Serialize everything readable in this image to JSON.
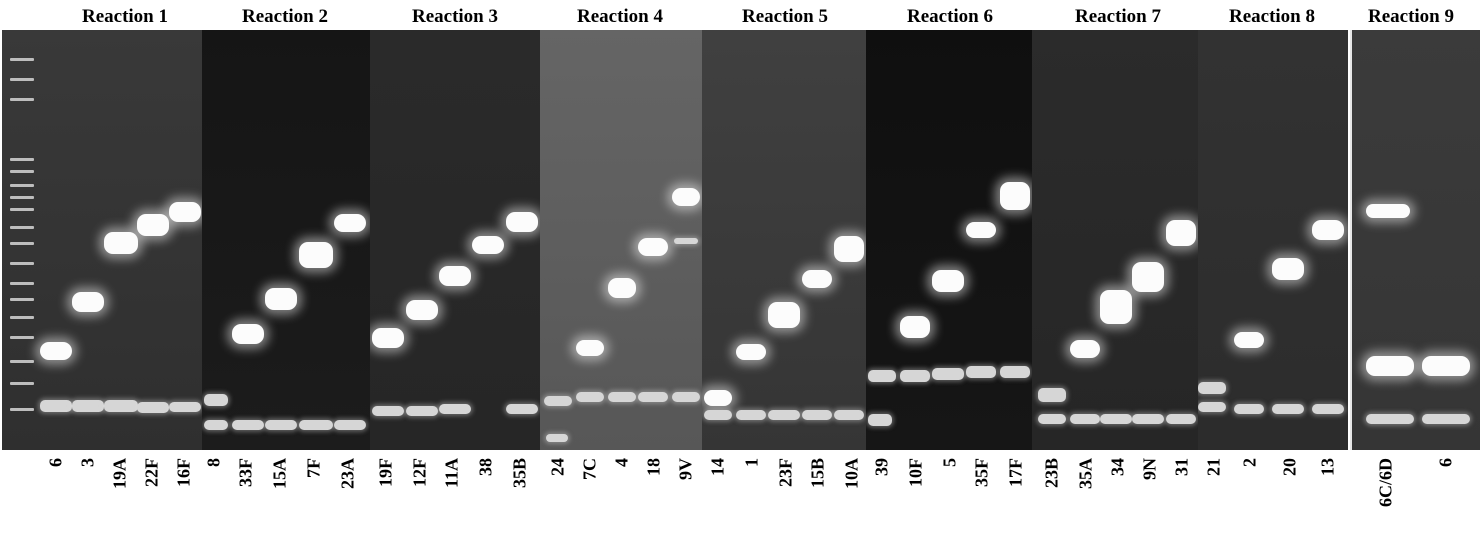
{
  "reactions": [
    {
      "title": "Reaction 1",
      "lanes": [
        "6",
        "3",
        "19A",
        "22F",
        "16F"
      ]
    },
    {
      "title": "Reaction 2",
      "lanes": [
        "8",
        "33F",
        "15A",
        "7F",
        "23A"
      ]
    },
    {
      "title": "Reaction 3",
      "lanes": [
        "19F",
        "12F",
        "11A",
        "38",
        "35B"
      ]
    },
    {
      "title": "Reaction 4",
      "lanes": [
        "24",
        "7C",
        "4",
        "18",
        "9V"
      ]
    },
    {
      "title": "Reaction 5",
      "lanes": [
        "14",
        "1",
        "23F",
        "15B",
        "10A"
      ]
    },
    {
      "title": "Reaction 6",
      "lanes": [
        "39",
        "10F",
        "5",
        "35F",
        "17F"
      ]
    },
    {
      "title": "Reaction 7",
      "lanes": [
        "23B",
        "35A",
        "34",
        "9N",
        "31"
      ]
    },
    {
      "title": "Reaction 8",
      "lanes": [
        "21",
        "2",
        "20",
        "13"
      ]
    },
    {
      "title": "Reaction 9",
      "lanes": [
        "6C/6D",
        "6"
      ]
    }
  ]
}
